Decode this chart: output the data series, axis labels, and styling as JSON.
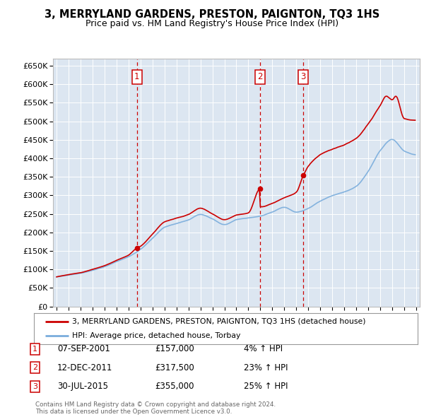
{
  "title": "3, MERRYLAND GARDENS, PRESTON, PAIGNTON, TQ3 1HS",
  "subtitle": "Price paid vs. HM Land Registry's House Price Index (HPI)",
  "plot_bg_color": "#dce6f1",
  "ylim": [
    0,
    670000
  ],
  "yticks": [
    0,
    50000,
    100000,
    150000,
    200000,
    250000,
    300000,
    350000,
    400000,
    450000,
    500000,
    550000,
    600000,
    650000
  ],
  "ytick_labels": [
    "£0",
    "£50K",
    "£100K",
    "£150K",
    "£200K",
    "£250K",
    "£300K",
    "£350K",
    "£400K",
    "£450K",
    "£500K",
    "£550K",
    "£600K",
    "£650K"
  ],
  "red_line_color": "#cc0000",
  "blue_line_color": "#7aaddc",
  "dashed_line_color": "#cc0000",
  "purchases": [
    {
      "year": 2001.69,
      "price": 157000,
      "label": "1"
    },
    {
      "year": 2011.95,
      "price": 317500,
      "label": "2"
    },
    {
      "year": 2015.58,
      "price": 355000,
      "label": "3"
    }
  ],
  "legend_label_red": "3, MERRYLAND GARDENS, PRESTON, PAIGNTON, TQ3 1HS (detached house)",
  "legend_label_blue": "HPI: Average price, detached house, Torbay",
  "table_rows": [
    {
      "num": "1",
      "date": "07-SEP-2001",
      "price": "£157,000",
      "change": "4% ↑ HPI"
    },
    {
      "num": "2",
      "date": "12-DEC-2011",
      "price": "£317,500",
      "change": "23% ↑ HPI"
    },
    {
      "num": "3",
      "date": "30-JUL-2015",
      "price": "£355,000",
      "change": "25% ↑ HPI"
    }
  ],
  "footer": "Contains HM Land Registry data © Crown copyright and database right 2024.\nThis data is licensed under the Open Government Licence v3.0."
}
